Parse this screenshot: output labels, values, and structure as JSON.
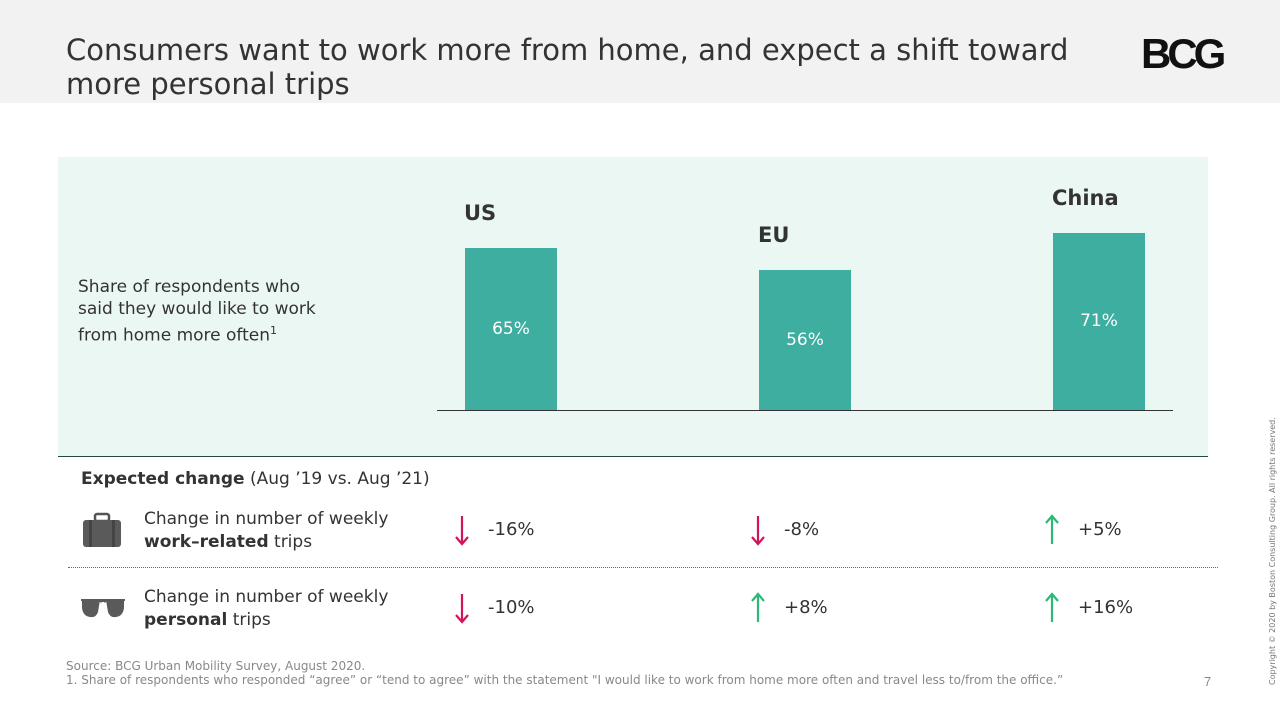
{
  "header": {
    "title": "Consumers want to work more from home, and expect a shift toward more personal trips",
    "logo": "BCG"
  },
  "chart_data": {
    "type": "bar",
    "title": "",
    "ylabel": "Share of respondents who said they would like to work from home more often",
    "ylabel_footnote": "1",
    "categories": [
      "US",
      "EU",
      "China"
    ],
    "values": [
      65,
      56,
      71
    ],
    "value_labels": [
      "65%",
      "56%",
      "71%"
    ],
    "ylim": [
      0,
      100
    ],
    "bar_color": "#3dae9f"
  },
  "expected_change": {
    "heading_bold": "Expected change",
    "heading_rest": " (Aug ’19 vs. Aug ’21)",
    "rows": [
      {
        "label_line1": "Change in number of weekly",
        "label_bold": "work–related",
        "label_tail": " trips",
        "icon": "briefcase-icon",
        "values": [
          -16,
          -8,
          5
        ],
        "value_labels": [
          "-16%",
          "-8%",
          "+5%"
        ]
      },
      {
        "label_line1": "Change in number of weekly",
        "label_bold": "personal",
        "label_tail": " trips",
        "icon": "sunglasses-icon",
        "values": [
          -10,
          8,
          16
        ],
        "value_labels": [
          "-10%",
          "+8%",
          "+16%"
        ]
      }
    ],
    "colors": {
      "down": "#d4145a",
      "up": "#29ba74"
    }
  },
  "footer": {
    "source": "Source: BCG Urban Mobility Survey, August 2020.",
    "note": "1. Share of respondents who responded “agree” or “tend to agree” with the statement \"I would like to work from home more often and travel less to/from the office.”",
    "page_number": "7",
    "copyright": "Copyright © 2020 by Boston Consulting Group. All rights reserved."
  }
}
